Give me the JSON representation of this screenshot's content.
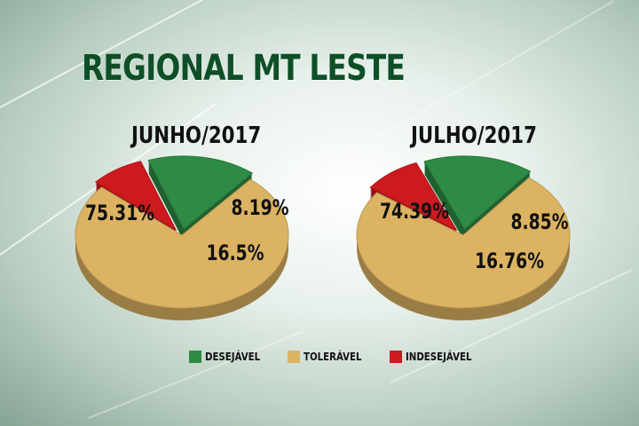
{
  "title": "REGIONAL MT LESTE",
  "colors": {
    "desejavel": "#2e8b45",
    "toleravel": "#dcb363",
    "indesejavel": "#cc1a1f"
  },
  "legend": [
    {
      "label": "DESEJÁVEL",
      "color": "#2e8b45"
    },
    {
      "label": "TOLERÁVEL",
      "color": "#dcb363"
    },
    {
      "label": "INDESEJÁVEL",
      "color": "#cc1a1f"
    }
  ],
  "chart_data": [
    {
      "type": "pie",
      "title": "JUNHO/2017",
      "slices": [
        {
          "name": "TOLERÁVEL",
          "value": 75.31,
          "label": "75.31%"
        },
        {
          "name": "INDESEJÁVEL",
          "value": 8.19,
          "label": "8.19%"
        },
        {
          "name": "DESEJÁVEL",
          "value": 16.5,
          "label": "16.5%"
        }
      ]
    },
    {
      "type": "pie",
      "title": "JULHO/2017",
      "slices": [
        {
          "name": "TOLERÁVEL",
          "value": 74.39,
          "label": "74.39%"
        },
        {
          "name": "INDESEJÁVEL",
          "value": 8.85,
          "label": "8.85%"
        },
        {
          "name": "DESEJÁVEL",
          "value": 16.76,
          "label": "16.76%"
        }
      ]
    }
  ]
}
